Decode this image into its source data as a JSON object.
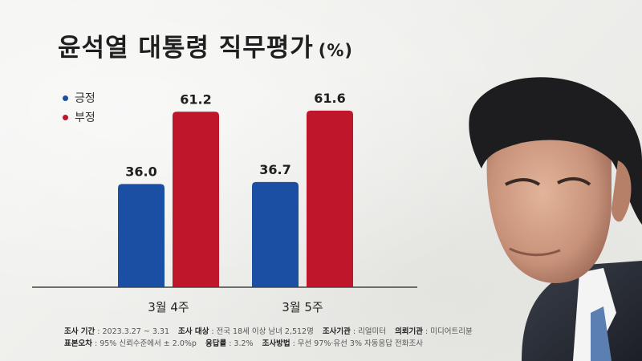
{
  "title": "윤석열 대통령 직무평가",
  "title_unit": "(%)",
  "colors": {
    "positive": "#1a4fa3",
    "negative": "#c0162c"
  },
  "chart_data": {
    "type": "bar",
    "categories": [
      "3월 4주",
      "3월 5주"
    ],
    "series": [
      {
        "name": "긍정",
        "values": [
          36.0,
          61.2
        ]
      },
      {
        "name": "부정",
        "values": [
          36.7,
          61.6
        ]
      }
    ],
    "data_labels": [
      "36.0",
      "61.2",
      "36.7",
      "61.6"
    ],
    "ylim": [
      0,
      75
    ],
    "legend_position": "top-left",
    "grid": false
  },
  "legend": [
    {
      "label": "긍정",
      "color": "#1a4fa3"
    },
    {
      "label": "부정",
      "color": "#c0162c"
    }
  ],
  "footer": {
    "line1": [
      {
        "label": "조사 기간",
        "value": ": 2023.3.27 ~ 3.31"
      },
      {
        "label": "조사 대상",
        "value": ": 전국 18세 이상 남녀 2,512명"
      },
      {
        "label": "조사기관",
        "value": ": 리얼미터"
      },
      {
        "label": "의뢰기관",
        "value": ": 미디어트리뷴"
      }
    ],
    "line2": [
      {
        "label": "표본오차",
        "value": ": 95% 신뢰수준에서 ± 2.0%p"
      },
      {
        "label": "응답률",
        "value": ": 3.2%"
      },
      {
        "label": "조사방법",
        "value": ": 무선 97%·유선 3% 자동응답 전화조사"
      }
    ]
  }
}
